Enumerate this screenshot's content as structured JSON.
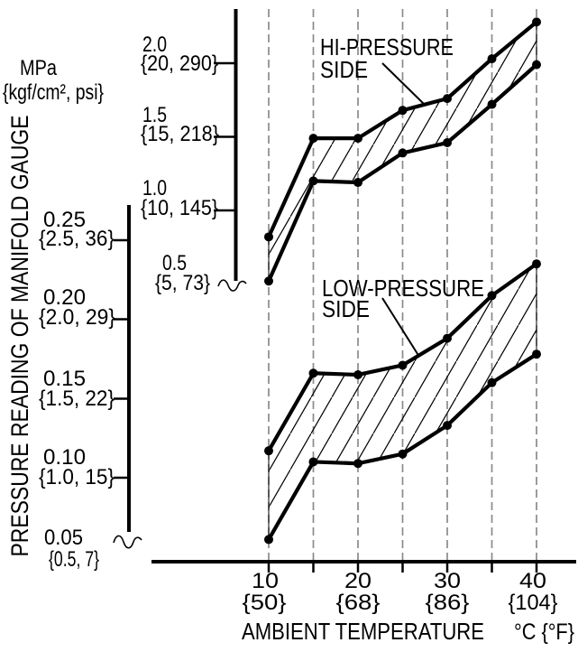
{
  "units": {
    "primary": "MPa",
    "secondary": "{kgf/cm², psi}"
  },
  "y_axis_title": "PRESSURE READING OF MANIFOLD GAUGE",
  "x_axis": {
    "title": "AMBIENT TEMPERATURE",
    "units": "°C {°F}",
    "ticks": [
      {
        "c": "10",
        "f": "{50}"
      },
      {
        "c": "20",
        "f": "{68}"
      },
      {
        "c": "30",
        "f": "{86}"
      },
      {
        "c": "40",
        "f": "{104}"
      }
    ]
  },
  "hi_scale": {
    "ticks": [
      {
        "mpa": "2.0",
        "alt": "{20, 290}"
      },
      {
        "mpa": "1.5",
        "alt": "{15, 218}"
      },
      {
        "mpa": "1.0",
        "alt": "{10, 145}"
      },
      {
        "mpa": "0.5",
        "alt": "{5, 73}"
      }
    ]
  },
  "low_scale": {
    "ticks": [
      {
        "mpa": "0.25",
        "alt": "{2.5, 36}"
      },
      {
        "mpa": "0.20",
        "alt": "{2.0, 29}"
      },
      {
        "mpa": "0.15",
        "alt": "{1.5, 22}"
      },
      {
        "mpa": "0.10",
        "alt": "{1.0, 15}"
      },
      {
        "mpa": "0.05",
        "alt": "{0.5, 7}"
      }
    ]
  },
  "labels": {
    "hi_line1": "HI-PRESSURE",
    "hi_line2": "SIDE",
    "low_line1": "LOW-PRESSURE",
    "low_line2": "SIDE"
  },
  "colors": {
    "ink": "#000000",
    "gridline": "#8a8a8a",
    "background": "#ffffff"
  },
  "chart_data": {
    "type": "line",
    "title": "",
    "xlabel": "AMBIENT TEMPERATURE",
    "x_units": "°C {°F}",
    "ylabel": "PRESSURE READING OF MANIFOLD GAUGE",
    "y_units": "MPa {kgf/cm², psi}",
    "grid": "vertical-dashed",
    "x": [
      10,
      15,
      20,
      25,
      30,
      35,
      40
    ],
    "x_major_tick_labels": [
      {
        "c": 10,
        "f": 50
      },
      {
        "c": 20,
        "f": 68
      },
      {
        "c": 30,
        "f": 86
      },
      {
        "c": 40,
        "f": 104
      }
    ],
    "hi_scale_ticks_mpa": [
      2.0,
      1.5,
      1.0,
      0.5
    ],
    "hi_scale_ticks_alt": [
      "{20, 290}",
      "{15, 218}",
      "{10, 145}",
      "{5, 73}"
    ],
    "low_scale_ticks_mpa": [
      0.25,
      0.2,
      0.15,
      0.1,
      0.05
    ],
    "low_scale_ticks_alt": [
      "{2.5, 36}",
      "{2.0, 29}",
      "{1.5, 22}",
      "{1.0, 15}",
      "{0.5, 7}"
    ],
    "series": [
      {
        "name": "HI-PRESSURE SIDE upper limit",
        "scale": "hi",
        "values_mpa": [
          0.82,
          1.49,
          1.49,
          1.68,
          1.76,
          2.03,
          2.28
        ]
      },
      {
        "name": "HI-PRESSURE SIDE lower limit",
        "scale": "hi",
        "values_mpa": [
          0.52,
          1.2,
          1.19,
          1.39,
          1.46,
          1.72,
          1.99
        ]
      },
      {
        "name": "LOW-PRESSURE SIDE upper limit",
        "scale": "low",
        "values_mpa": [
          0.117,
          0.166,
          0.165,
          0.171,
          0.188,
          0.215,
          0.235
        ]
      },
      {
        "name": "LOW-PRESSURE SIDE lower limit",
        "scale": "low",
        "values_mpa": [
          0.061,
          0.11,
          0.109,
          0.115,
          0.133,
          0.16,
          0.178
        ]
      }
    ],
    "bands": [
      {
        "label": "HI-PRESSURE SIDE",
        "between_series": [
          0,
          1
        ],
        "fill": "diagonal-hatch"
      },
      {
        "label": "LOW-PRESSURE SIDE",
        "between_series": [
          2,
          3
        ],
        "fill": "diagonal-hatch"
      }
    ]
  }
}
